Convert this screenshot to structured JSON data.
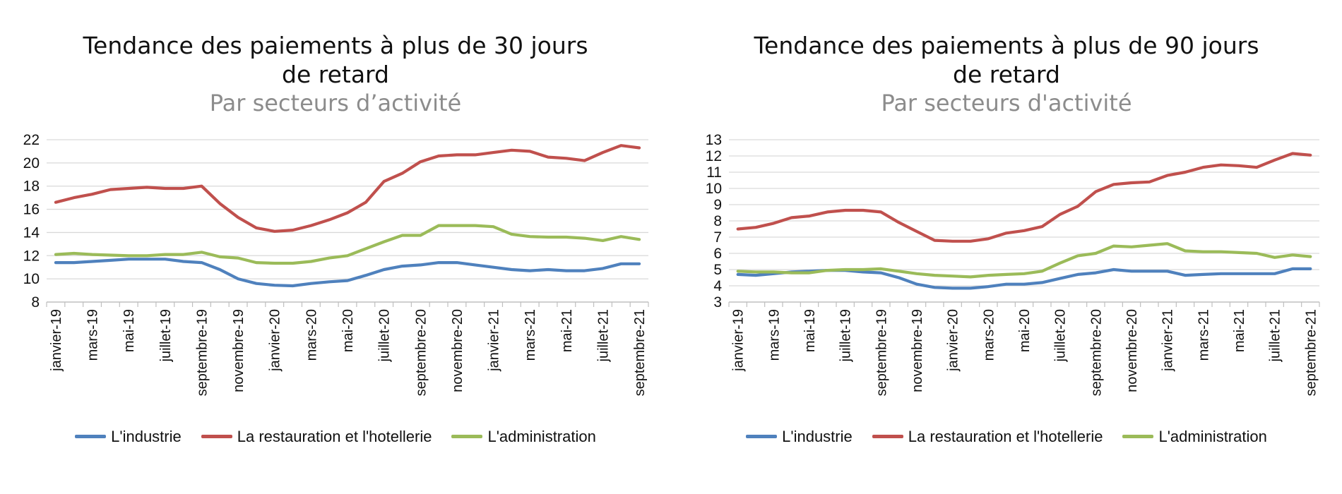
{
  "chart_data": [
    {
      "type": "line",
      "title": "Tendance des paiements à plus de 30 jours de retard",
      "title_lines": [
        "Tendance des paiements à plus de 30 jours",
        "de retard"
      ],
      "subtitle": "Par secteurs d’activité",
      "xlabel": "",
      "ylabel": "",
      "ylim": [
        8,
        22
      ],
      "yticks": [
        8,
        10,
        12,
        14,
        16,
        18,
        20,
        22
      ],
      "grid": true,
      "legend_position": "bottom",
      "x": [
        "janvier-19",
        "février-19",
        "mars-19",
        "avril-19",
        "mai-19",
        "juin-19",
        "juillet-19",
        "août-19",
        "septembre-19",
        "octobre-19",
        "novembre-19",
        "décembre-19",
        "janvier-20",
        "février-20",
        "mars-20",
        "avril-20",
        "mai-20",
        "juin-20",
        "juillet-20",
        "août-20",
        "septembre-20",
        "octobre-20",
        "novembre-20",
        "décembre-20",
        "janvier-21",
        "février-21",
        "mars-21",
        "avril-21",
        "mai-21",
        "juin-21",
        "juillet-21",
        "août-21",
        "septembre-21"
      ],
      "x_tick_labels": [
        "janvier-19",
        "",
        "mars-19",
        "",
        "mai-19",
        "",
        "juillet-19",
        "",
        "septembre-19",
        "",
        "novembre-19",
        "",
        "janvier-20",
        "",
        "mars-20",
        "",
        "mai-20",
        "",
        "juillet-20",
        "",
        "septembre-20",
        "",
        "novembre-20",
        "",
        "janvier-21",
        "",
        "mars-21",
        "",
        "mai-21",
        "",
        "juillet-21",
        "",
        "septembre-21"
      ],
      "series": [
        {
          "name": "L'industrie",
          "color": "#4f81bd",
          "values": [
            11.4,
            11.4,
            11.5,
            11.6,
            11.7,
            11.7,
            11.7,
            11.5,
            11.4,
            10.8,
            10.0,
            9.6,
            9.45,
            9.4,
            9.6,
            9.75,
            9.85,
            10.3,
            10.8,
            11.1,
            11.2,
            11.4,
            11.4,
            11.2,
            11.0,
            10.8,
            10.7,
            10.8,
            10.7,
            10.7,
            10.9,
            11.3,
            11.3
          ]
        },
        {
          "name": "La restauration et l'hotellerie",
          "color": "#c0504d",
          "values": [
            16.6,
            17.0,
            17.3,
            17.7,
            17.8,
            17.9,
            17.8,
            17.8,
            18.0,
            16.5,
            15.3,
            14.4,
            14.1,
            14.2,
            14.6,
            15.1,
            15.7,
            16.6,
            18.4,
            19.1,
            20.1,
            20.6,
            20.7,
            20.7,
            20.9,
            21.1,
            21.0,
            20.5,
            20.4,
            20.2,
            20.9,
            21.5,
            21.3
          ]
        },
        {
          "name": "L'administration",
          "color": "#9bbb59",
          "values": [
            12.1,
            12.2,
            12.1,
            12.05,
            12.0,
            12.0,
            12.1,
            12.1,
            12.3,
            11.9,
            11.8,
            11.4,
            11.35,
            11.35,
            11.5,
            11.8,
            12.0,
            12.6,
            13.2,
            13.75,
            13.75,
            14.6,
            14.6,
            14.6,
            14.5,
            13.85,
            13.65,
            13.6,
            13.6,
            13.5,
            13.3,
            13.65,
            13.4
          ]
        }
      ]
    },
    {
      "type": "line",
      "title": "Tendance des paiements à plus de 90 jours de retard",
      "title_lines": [
        "Tendance des paiements à plus de 90 jours",
        "de retard"
      ],
      "subtitle": "Par secteurs d'activité",
      "xlabel": "",
      "ylabel": "",
      "ylim": [
        3,
        13
      ],
      "yticks": [
        3,
        4,
        5,
        6,
        7,
        8,
        9,
        10,
        11,
        12,
        13
      ],
      "grid": true,
      "legend_position": "bottom",
      "x": [
        "janvier-19",
        "février-19",
        "mars-19",
        "avril-19",
        "mai-19",
        "juin-19",
        "juillet-19",
        "août-19",
        "septembre-19",
        "octobre-19",
        "novembre-19",
        "décembre-19",
        "janvier-20",
        "février-20",
        "mars-20",
        "avril-20",
        "mai-20",
        "juin-20",
        "juillet-20",
        "août-20",
        "septembre-20",
        "octobre-20",
        "novembre-20",
        "décembre-20",
        "janvier-21",
        "février-21",
        "mars-21",
        "avril-21",
        "mai-21",
        "juin-21",
        "juillet-21",
        "août-21",
        "septembre-21"
      ],
      "x_tick_labels": [
        "janvier-19",
        "",
        "mars-19",
        "",
        "mai-19",
        "",
        "juillet-19",
        "",
        "septembre-19",
        "",
        "novembre-19",
        "",
        "janvier-20",
        "",
        "mars-20",
        "",
        "mai-20",
        "",
        "juillet-20",
        "",
        "septembre-20",
        "",
        "novembre-20",
        "",
        "janvier-21",
        "",
        "mars-21",
        "",
        "mai-21",
        "",
        "juillet-21",
        "",
        "septembre-21"
      ],
      "series": [
        {
          "name": "L'industrie",
          "color": "#4f81bd",
          "values": [
            4.7,
            4.65,
            4.75,
            4.85,
            4.9,
            4.95,
            4.95,
            4.85,
            4.8,
            4.5,
            4.1,
            3.9,
            3.85,
            3.85,
            3.95,
            4.1,
            4.1,
            4.2,
            4.45,
            4.7,
            4.8,
            5.0,
            4.9,
            4.9,
            4.9,
            4.65,
            4.7,
            4.75,
            4.75,
            4.75,
            4.75,
            5.05,
            5.05
          ]
        },
        {
          "name": "La restauration et l'hotellerie",
          "color": "#c0504d",
          "values": [
            7.5,
            7.6,
            7.85,
            8.2,
            8.3,
            8.55,
            8.65,
            8.65,
            8.55,
            7.9,
            7.35,
            6.8,
            6.75,
            6.75,
            6.9,
            7.25,
            7.4,
            7.65,
            8.4,
            8.9,
            9.8,
            10.25,
            10.35,
            10.4,
            10.8,
            11.0,
            11.3,
            11.45,
            11.4,
            11.3,
            11.75,
            12.15,
            12.05
          ]
        },
        {
          "name": "L'administration",
          "color": "#9bbb59",
          "values": [
            4.9,
            4.85,
            4.85,
            4.8,
            4.8,
            4.95,
            5.0,
            5.0,
            5.05,
            4.9,
            4.75,
            4.65,
            4.6,
            4.55,
            4.65,
            4.7,
            4.75,
            4.9,
            5.4,
            5.85,
            6.0,
            6.45,
            6.4,
            6.5,
            6.6,
            6.15,
            6.1,
            6.1,
            6.05,
            6.0,
            5.75,
            5.9,
            5.8
          ]
        }
      ]
    }
  ]
}
